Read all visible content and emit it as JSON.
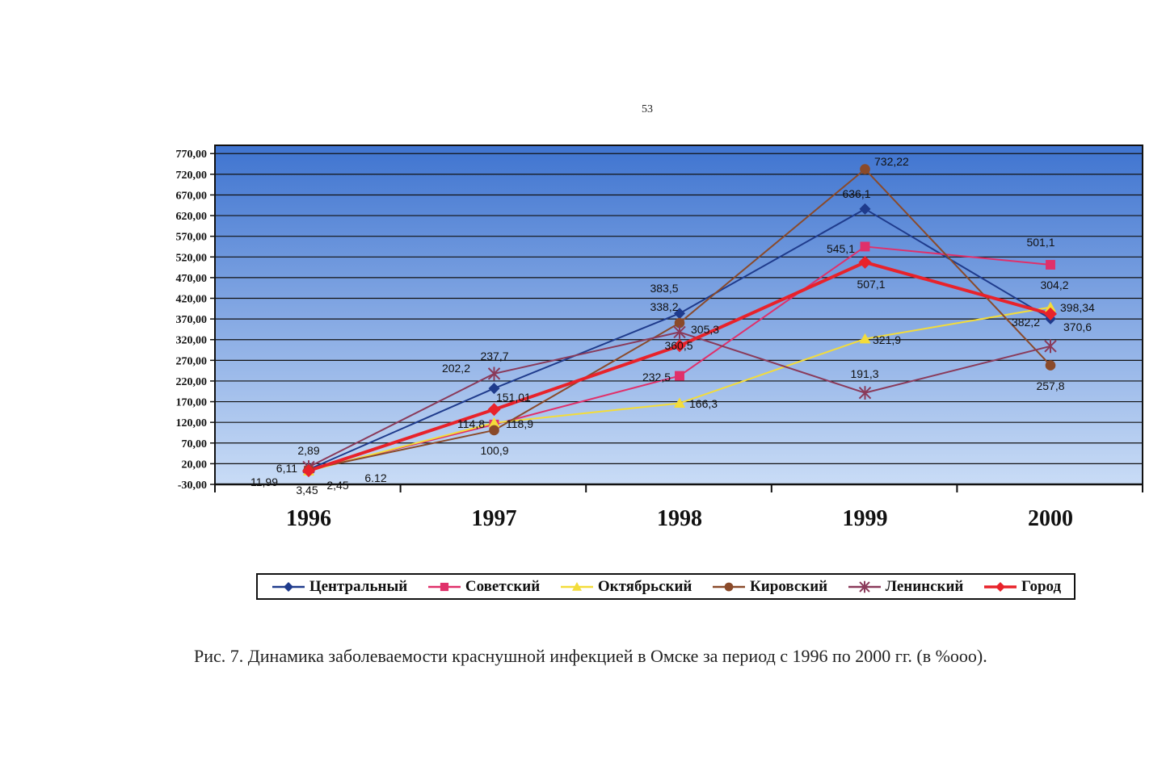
{
  "page_number": "53",
  "caption": "Рис. 7. Динамика заболеваемости краснушной инфекцией в Омске за период с 1996 по 2000 гг. (в %ooo).",
  "colors": {
    "plot_top": "#3f74d0",
    "plot_bottom": "#c9dcf6",
    "gridline": "#111111"
  },
  "chart_data": {
    "type": "line",
    "title": "",
    "xlabel": "",
    "ylabel": "",
    "categories": [
      "1996",
      "1997",
      "1998",
      "1999",
      "2000"
    ],
    "ylim": [
      -30,
      790
    ],
    "yticks": [
      -30,
      20,
      70,
      120,
      170,
      220,
      270,
      320,
      370,
      420,
      470,
      520,
      570,
      620,
      670,
      720,
      770
    ],
    "ytick_labels": [
      "-30,00",
      "20,00",
      "70,00",
      "120,00",
      "170,00",
      "220,00",
      "270,00",
      "320,00",
      "370,00",
      "420,00",
      "470,00",
      "520,00",
      "570,00",
      "620,00",
      "670,00",
      "720,00",
      "770,00"
    ],
    "grid": true,
    "legend_position": "bottom",
    "series": [
      {
        "name": "Центральный",
        "color": "#1f3b8c",
        "marker": "diamond",
        "width": 2,
        "values": [
          6.11,
          202.2,
          383.5,
          636.1,
          370.6
        ]
      },
      {
        "name": "Советский",
        "color": "#e0306a",
        "marker": "square",
        "width": 2,
        "values": [
          3.45,
          114.8,
          232.5,
          545.1,
          501.1
        ]
      },
      {
        "name": "Октябрьский",
        "color": "#f3dc3a",
        "marker": "triangle",
        "width": 2,
        "values": [
          2.45,
          118.9,
          166.3,
          321.9,
          398.34
        ]
      },
      {
        "name": "Кировский",
        "color": "#8a4a2a",
        "marker": "circle",
        "width": 2,
        "values": [
          6.12,
          100.9,
          360.5,
          732.22,
          257.8
        ]
      },
      {
        "name": "Ленинский",
        "color": "#8a3a5a",
        "marker": "star",
        "width": 2,
        "values": [
          11.99,
          237.7,
          338.2,
          191.3,
          304.2
        ]
      },
      {
        "name": "Город",
        "color": "#e8222a",
        "marker": "diamond",
        "width": 4,
        "values": [
          2.89,
          151.01,
          305.3,
          507.1,
          382.2
        ]
      }
    ],
    "data_labels": [
      {
        "text": "2,89"
      },
      {
        "text": "6,11"
      },
      {
        "text": "11,99"
      },
      {
        "text": "3,45"
      },
      {
        "text": "2,45"
      },
      {
        "text": "6.12"
      },
      {
        "text": "237,7"
      },
      {
        "text": "202,2"
      },
      {
        "text": "151,01"
      },
      {
        "text": "114,8"
      },
      {
        "text": "118,9"
      },
      {
        "text": "100,9"
      },
      {
        "text": "383,5"
      },
      {
        "text": "338,2"
      },
      {
        "text": "305,3"
      },
      {
        "text": "360,5"
      },
      {
        "text": "232,5"
      },
      {
        "text": "166,3"
      },
      {
        "text": "732,22"
      },
      {
        "text": "636,1"
      },
      {
        "text": "545,1"
      },
      {
        "text": "507,1"
      },
      {
        "text": "321,9"
      },
      {
        "text": "191,3"
      },
      {
        "text": "501,1"
      },
      {
        "text": "304,2"
      },
      {
        "text": "398,34"
      },
      {
        "text": "382,2"
      },
      {
        "text": "370,6"
      },
      {
        "text": "257,8"
      }
    ]
  }
}
